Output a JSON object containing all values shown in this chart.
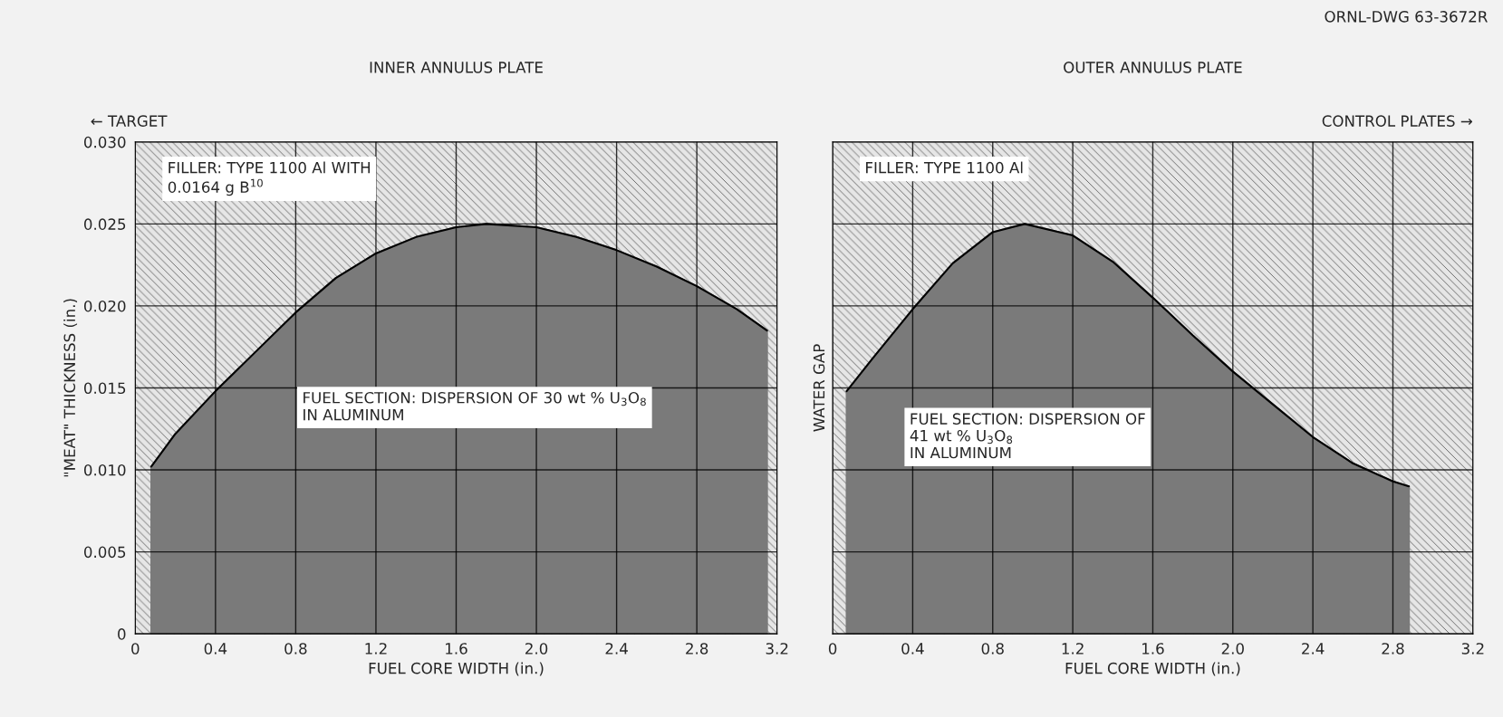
{
  "chart_data": [
    {
      "type": "area",
      "title": "INNER ANNULUS PLATE",
      "xlabel": "FUEL CORE WIDTH (in.)",
      "ylabel": "\"MEAT\" THICKNESS (in.)",
      "x": [
        0.08,
        0.2,
        0.4,
        0.6,
        0.8,
        1.0,
        1.2,
        1.4,
        1.6,
        1.75,
        2.0,
        2.2,
        2.4,
        2.6,
        2.8,
        3.0,
        3.15
      ],
      "series": [
        {
          "color": "#7a7a7a",
          "values": [
            0.0102,
            0.0122,
            0.0148,
            0.0172,
            0.0196,
            0.0217,
            0.0232,
            0.0242,
            0.0248,
            0.025,
            0.0248,
            0.0242,
            0.0234,
            0.0224,
            0.0212,
            0.0198,
            0.0185
          ]
        }
      ],
      "xlim": [
        0,
        3.2
      ],
      "ylim": [
        0,
        0.03
      ],
      "xticks": [
        0,
        0.4,
        0.8,
        1.2,
        1.6,
        {
          "value": 2,
          "label": "2.0"
        },
        2.4,
        2.8,
        3.2
      ],
      "yticks": [
        0,
        0.005,
        {
          "value": 0.01,
          "label": "0.010"
        },
        0.015,
        {
          "value": 0.02,
          "label": "0.020"
        },
        0.025,
        {
          "value": 0.03,
          "label": "0.030"
        }
      ],
      "grid": true,
      "annotations": [
        "← TARGET",
        "FILLER: TYPE 1100 Al WITH\n0.0164 g B$^{10}$",
        "FUEL SECTION: DISPERSION OF 30 wt % U$_{3}$O$_{8}$\nIN ALUMINUM"
      ]
    },
    {
      "type": "area",
      "title": "OUTER ANNULUS PLATE",
      "xlabel": "FUEL CORE WIDTH (in.)",
      "ylabel": "WATER GAP",
      "x": [
        0.07,
        0.2,
        0.4,
        0.6,
        0.8,
        0.96,
        1.2,
        1.4,
        1.6,
        1.8,
        2.0,
        2.2,
        2.4,
        2.6,
        2.8,
        2.88
      ],
      "series": [
        {
          "color": "#7a7a7a",
          "values": [
            0.0148,
            0.0168,
            0.0198,
            0.0226,
            0.0245,
            0.025,
            0.0243,
            0.0227,
            0.0205,
            0.0182,
            0.016,
            0.014,
            0.012,
            0.0104,
            0.0093,
            0.009
          ]
        }
      ],
      "xlim": [
        0,
        3.2
      ],
      "ylim": [
        0,
        0.03
      ],
      "xticks": [
        0,
        0.4,
        0.8,
        1.2,
        1.6,
        {
          "value": 2,
          "label": "2.0"
        },
        2.4,
        2.8,
        3.2
      ],
      "yticks": [
        0,
        0.005,
        0.01,
        0.015,
        0.02,
        0.025,
        0.03
      ],
      "grid": true,
      "tick_labels": "x",
      "annotations": [
        "CONTROL PLATES →",
        "FILLER: TYPE 1100 Al",
        "FUEL SECTION: DISPERSION OF\n41 wt % U$_{3}$O$_{8}$\nIN ALUMINUM",
        "ORNL-DWG 63-3672R"
      ]
    }
  ]
}
